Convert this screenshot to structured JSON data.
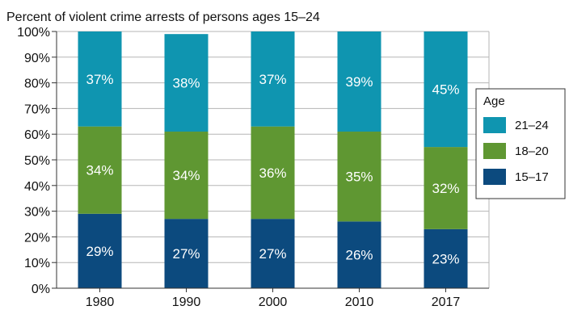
{
  "chart_data": {
    "type": "bar",
    "stacked": true,
    "title": "Percent of violent crime arrests of persons ages 15–24",
    "categories": [
      "1980",
      "1990",
      "2000",
      "2010",
      "2017"
    ],
    "series": [
      {
        "name": "15–17",
        "values": [
          29,
          27,
          27,
          26,
          23
        ],
        "labels": [
          "29%",
          "27%",
          "27%",
          "26%",
          "23%"
        ],
        "color": "#0c4a7e"
      },
      {
        "name": "18–20",
        "values": [
          34,
          34,
          36,
          35,
          32
        ],
        "labels": [
          "34%",
          "34%",
          "36%",
          "35%",
          "32%"
        ],
        "color": "#5f9732"
      },
      {
        "name": "21–24",
        "values": [
          37,
          38,
          37,
          39,
          45
        ],
        "labels": [
          "37%",
          "38%",
          "37%",
          "39%",
          "45%"
        ],
        "color": "#0f95b0"
      }
    ],
    "ylim": [
      0,
      100
    ],
    "yticks": [
      "0%",
      "10%",
      "20%",
      "30%",
      "40%",
      "50%",
      "60%",
      "70%",
      "80%",
      "90%",
      "100%"
    ],
    "grid": true,
    "legend": {
      "title": "Age",
      "placement": "right",
      "items": [
        "21–24",
        "18–20",
        "15–17"
      ]
    }
  }
}
